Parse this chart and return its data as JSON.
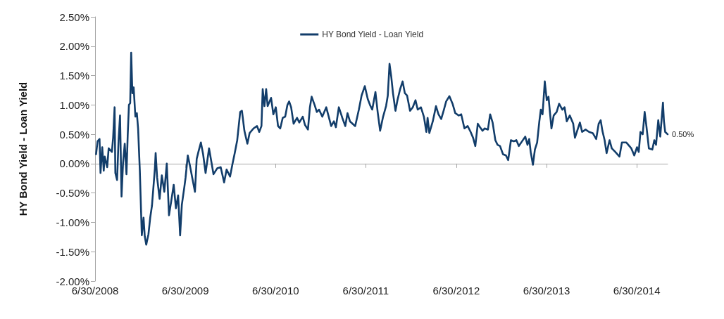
{
  "chart_data": {
    "type": "line",
    "ylabel": "HY Bond Yield - Loan Yield",
    "legend": "top",
    "annotations": [
      {
        "text": "0.50%",
        "x": "2014-11-02",
        "y": 0.5
      }
    ],
    "xlim": [
      "2008-06-30",
      "2014-11-02"
    ],
    "xticks": [
      {
        "value": "2008-06-30",
        "label": "6/30/2008"
      },
      {
        "value": "2009-06-30",
        "label": "6/30/2009"
      },
      {
        "value": "2010-06-30",
        "label": "6/30/2010"
      },
      {
        "value": "2011-06-30",
        "label": "6/30/2011"
      },
      {
        "value": "2012-06-30",
        "label": "6/30/2012"
      },
      {
        "value": "2013-06-30",
        "label": "6/30/2013"
      },
      {
        "value": "2014-06-30",
        "label": "6/30/2014"
      }
    ],
    "ylim": [
      -2,
      2.5
    ],
    "yticks": [
      {
        "value": -2,
        "label": "-2.00%"
      },
      {
        "value": -1.5,
        "label": "-1.50%"
      },
      {
        "value": -1,
        "label": "-1.00%"
      },
      {
        "value": -0.5,
        "label": "-0.50%"
      },
      {
        "value": 0,
        "label": "0.00%"
      },
      {
        "value": 0.5,
        "label": "0.50%"
      },
      {
        "value": 1,
        "label": "1.00%"
      },
      {
        "value": 1.5,
        "label": "1.50%"
      },
      {
        "value": 2,
        "label": "2.00%"
      },
      {
        "value": 2.5,
        "label": "2.50%"
      }
    ],
    "series": [
      {
        "name": "HY Bond Yield - Loan Yield",
        "color": "#123d6a",
        "x": [
          "2008-07-04",
          "2008-07-10",
          "2008-07-18",
          "2008-07-22",
          "2008-07-29",
          "2008-08-04",
          "2008-08-08",
          "2008-08-18",
          "2008-08-24",
          "2008-09-06",
          "2008-09-11",
          "2008-09-17",
          "2008-09-20",
          "2008-09-27",
          "2008-10-03",
          "2008-10-09",
          "2008-10-15",
          "2008-10-21",
          "2008-10-28",
          "2008-11-04",
          "2008-11-09",
          "2008-11-14",
          "2008-11-19",
          "2008-11-23",
          "2008-11-28",
          "2008-12-03",
          "2008-12-10",
          "2008-12-16",
          "2008-12-21",
          "2008-12-28",
          "2009-01-05",
          "2009-01-12",
          "2009-01-17",
          "2009-01-23",
          "2009-02-01",
          "2009-02-08",
          "2009-02-15",
          "2009-02-21",
          "2009-02-27",
          "2009-03-02",
          "2009-03-08",
          "2009-03-18",
          "2009-03-27",
          "2009-04-06",
          "2009-04-16",
          "2009-04-25",
          "2009-05-04",
          "2009-05-14",
          "2009-05-23",
          "2009-06-01",
          "2009-06-09",
          "2009-06-16",
          "2009-06-26",
          "2009-07-01",
          "2009-07-10",
          "2009-07-19",
          "2009-07-28",
          "2009-08-08",
          "2009-08-15",
          "2009-08-22",
          "2009-09-01",
          "2009-09-10",
          "2009-09-20",
          "2009-10-04",
          "2009-10-13",
          "2009-10-22",
          "2009-11-06",
          "2009-11-20",
          "2009-12-04",
          "2009-12-14",
          "2009-12-28",
          "2010-01-07",
          "2010-01-16",
          "2010-01-26",
          "2010-02-07",
          "2010-02-14",
          "2010-02-24",
          "2010-03-08",
          "2010-03-17",
          "2010-04-02",
          "2010-04-16",
          "2010-04-25",
          "2010-05-04",
          "2010-05-09",
          "2010-05-16",
          "2010-05-23",
          "2010-05-29",
          "2010-06-12",
          "2010-06-21",
          "2010-07-01",
          "2010-07-10",
          "2010-07-19",
          "2010-07-29",
          "2010-08-08",
          "2010-08-17",
          "2010-08-24",
          "2010-09-01",
          "2010-09-11",
          "2010-09-25",
          "2010-10-04",
          "2010-10-18",
          "2010-10-27",
          "2010-11-08",
          "2010-11-16",
          "2010-11-23",
          "2010-12-05",
          "2010-12-14",
          "2010-12-23",
          "2011-01-05",
          "2011-01-21",
          "2011-02-10",
          "2011-02-21",
          "2011-03-01",
          "2011-03-13",
          "2011-03-27",
          "2011-04-08",
          "2011-04-17",
          "2011-04-27",
          "2011-05-18",
          "2011-06-02",
          "2011-06-13",
          "2011-06-26",
          "2011-07-08",
          "2011-07-17",
          "2011-07-26",
          "2011-08-08",
          "2011-08-17",
          "2011-08-27",
          "2011-09-08",
          "2011-09-20",
          "2011-09-27",
          "2011-10-04",
          "2011-10-11",
          "2011-10-18",
          "2011-10-28",
          "2011-11-05",
          "2011-11-16",
          "2011-11-26",
          "2011-12-05",
          "2011-12-14",
          "2011-12-26",
          "2012-01-06",
          "2012-01-17",
          "2012-01-26",
          "2012-02-08",
          "2012-02-20",
          "2012-03-01",
          "2012-03-06",
          "2012-03-13",
          "2012-03-27",
          "2012-04-09",
          "2012-04-19",
          "2012-04-30",
          "2012-05-11",
          "2012-05-20",
          "2012-06-02",
          "2012-06-15",
          "2012-06-26",
          "2012-07-10",
          "2012-07-20",
          "2012-08-02",
          "2012-08-15",
          "2012-08-27",
          "2012-09-06",
          "2012-09-15",
          "2012-09-25",
          "2012-10-04",
          "2012-10-14",
          "2012-10-23",
          "2012-11-05",
          "2012-11-14",
          "2012-11-24",
          "2012-12-05",
          "2012-12-14",
          "2012-12-24",
          "2013-01-05",
          "2013-01-17",
          "2013-01-26",
          "2013-02-06",
          "2013-02-18",
          "2013-02-28",
          "2013-03-10",
          "2013-03-23",
          "2013-04-05",
          "2013-04-14",
          "2013-04-21",
          "2013-04-27",
          "2013-05-06",
          "2013-05-14",
          "2013-05-23",
          "2013-06-01",
          "2013-06-07",
          "2013-06-14",
          "2013-06-23",
          "2013-07-01",
          "2013-07-08",
          "2013-07-20",
          "2013-07-29",
          "2013-08-10",
          "2013-08-20",
          "2013-09-02",
          "2013-09-11",
          "2013-09-20",
          "2013-10-02",
          "2013-10-16",
          "2013-10-23",
          "2013-11-12",
          "2013-11-21",
          "2013-12-05",
          "2013-12-19",
          "2014-01-03",
          "2014-01-17",
          "2014-01-27",
          "2014-02-04",
          "2014-02-11",
          "2014-02-20",
          "2014-02-28",
          "2014-03-12",
          "2014-03-21",
          "2014-04-04",
          "2014-04-21",
          "2014-05-01",
          "2014-05-19",
          "2014-06-08",
          "2014-06-20",
          "2014-07-01",
          "2014-07-08",
          "2014-07-15",
          "2014-07-24",
          "2014-08-01",
          "2014-08-08",
          "2014-08-18",
          "2014-09-01",
          "2014-09-09",
          "2014-09-16",
          "2014-09-25",
          "2014-10-03",
          "2014-10-14",
          "2014-10-18",
          "2014-10-23",
          "2014-11-02"
        ],
        "values": [
          0.16,
          0.38,
          0.42,
          -0.16,
          0.28,
          -0.12,
          0.12,
          -0.06,
          0.26,
          0.2,
          0.44,
          0.96,
          -0.16,
          -0.28,
          0.4,
          0.82,
          -0.56,
          0,
          0.34,
          -0.18,
          0.48,
          1.0,
          1.03,
          1.89,
          1.2,
          1.3,
          0.8,
          0.86,
          0.6,
          -0.12,
          -1.22,
          -0.92,
          -1.24,
          -1.38,
          -1.2,
          -0.92,
          -0.72,
          -0.4,
          -0.08,
          0.18,
          -0.24,
          -0.6,
          -0.2,
          -0.48,
          0,
          -0.88,
          -0.64,
          -0.36,
          -0.76,
          -0.54,
          -1.22,
          -0.7,
          -0.4,
          -0.24,
          0.14,
          -0.04,
          -0.24,
          -0.48,
          0.08,
          0.2,
          0.36,
          0.16,
          -0.16,
          0.26,
          0.04,
          -0.18,
          -0.08,
          -0.06,
          -0.32,
          -0.1,
          -0.22,
          0,
          0.18,
          0.4,
          0.88,
          0.9,
          0.56,
          0.34,
          0.52,
          0.6,
          0.64,
          0.54,
          0.64,
          1.27,
          0.98,
          1.27,
          0.98,
          1.12,
          0.84,
          0.96,
          0.64,
          0.6,
          0.78,
          0.8,
          1.0,
          1.06,
          0.96,
          0.68,
          0.78,
          0.7,
          0.8,
          0.66,
          0.58,
          0.96,
          1.14,
          1.0,
          0.88,
          0.92,
          0.8,
          0.96,
          0.64,
          0.72,
          0.62,
          0.96,
          0.78,
          0.64,
          0.86,
          0.72,
          0.64,
          0.92,
          1.16,
          1.32,
          1.1,
          1.0,
          0.92,
          1.22,
          0.88,
          0.56,
          0.8,
          0.98,
          1.16,
          1.7,
          1.48,
          1.2,
          0.9,
          1.08,
          1.27,
          1.4,
          1.2,
          1.16,
          0.9,
          0.96,
          1.08,
          0.92,
          0.96,
          0.8,
          0.54,
          0.78,
          0.52,
          0.72,
          0.98,
          0.84,
          0.76,
          0.92,
          1.06,
          1.15,
          1.02,
          0.86,
          0.82,
          0.84,
          0.6,
          0.64,
          0.54,
          0.44,
          0.3,
          0.68,
          0.62,
          0.56,
          0.6,
          0.58,
          0.84,
          0.7,
          0.4,
          0.32,
          0.3,
          0.16,
          0.14,
          0.06,
          0.4,
          0.38,
          0.4,
          0.3,
          0.38,
          0.46,
          0.32,
          0.42,
          0.2,
          -0.02,
          0.24,
          0.36,
          0.72,
          0.92,
          0.84,
          1.4,
          1.08,
          1.14,
          0.6,
          0.82,
          0.88,
          1.02,
          0.92,
          0.96,
          0.72,
          0.82,
          0.68,
          0.44,
          0.7,
          0.54,
          0.58,
          0.54,
          0.52,
          0.42,
          0.68,
          0.74,
          0.56,
          0.4,
          0.18,
          0.4,
          0.26,
          0.2,
          0.12,
          0.36,
          0.36,
          0.26,
          0.14,
          0.28,
          0.2,
          0.54,
          0.5,
          0.88,
          0.64,
          0.26,
          0.24,
          0.4,
          0.32,
          0.74,
          0.46,
          1.04,
          0.72,
          0.54,
          0.5
        ]
      }
    ]
  }
}
